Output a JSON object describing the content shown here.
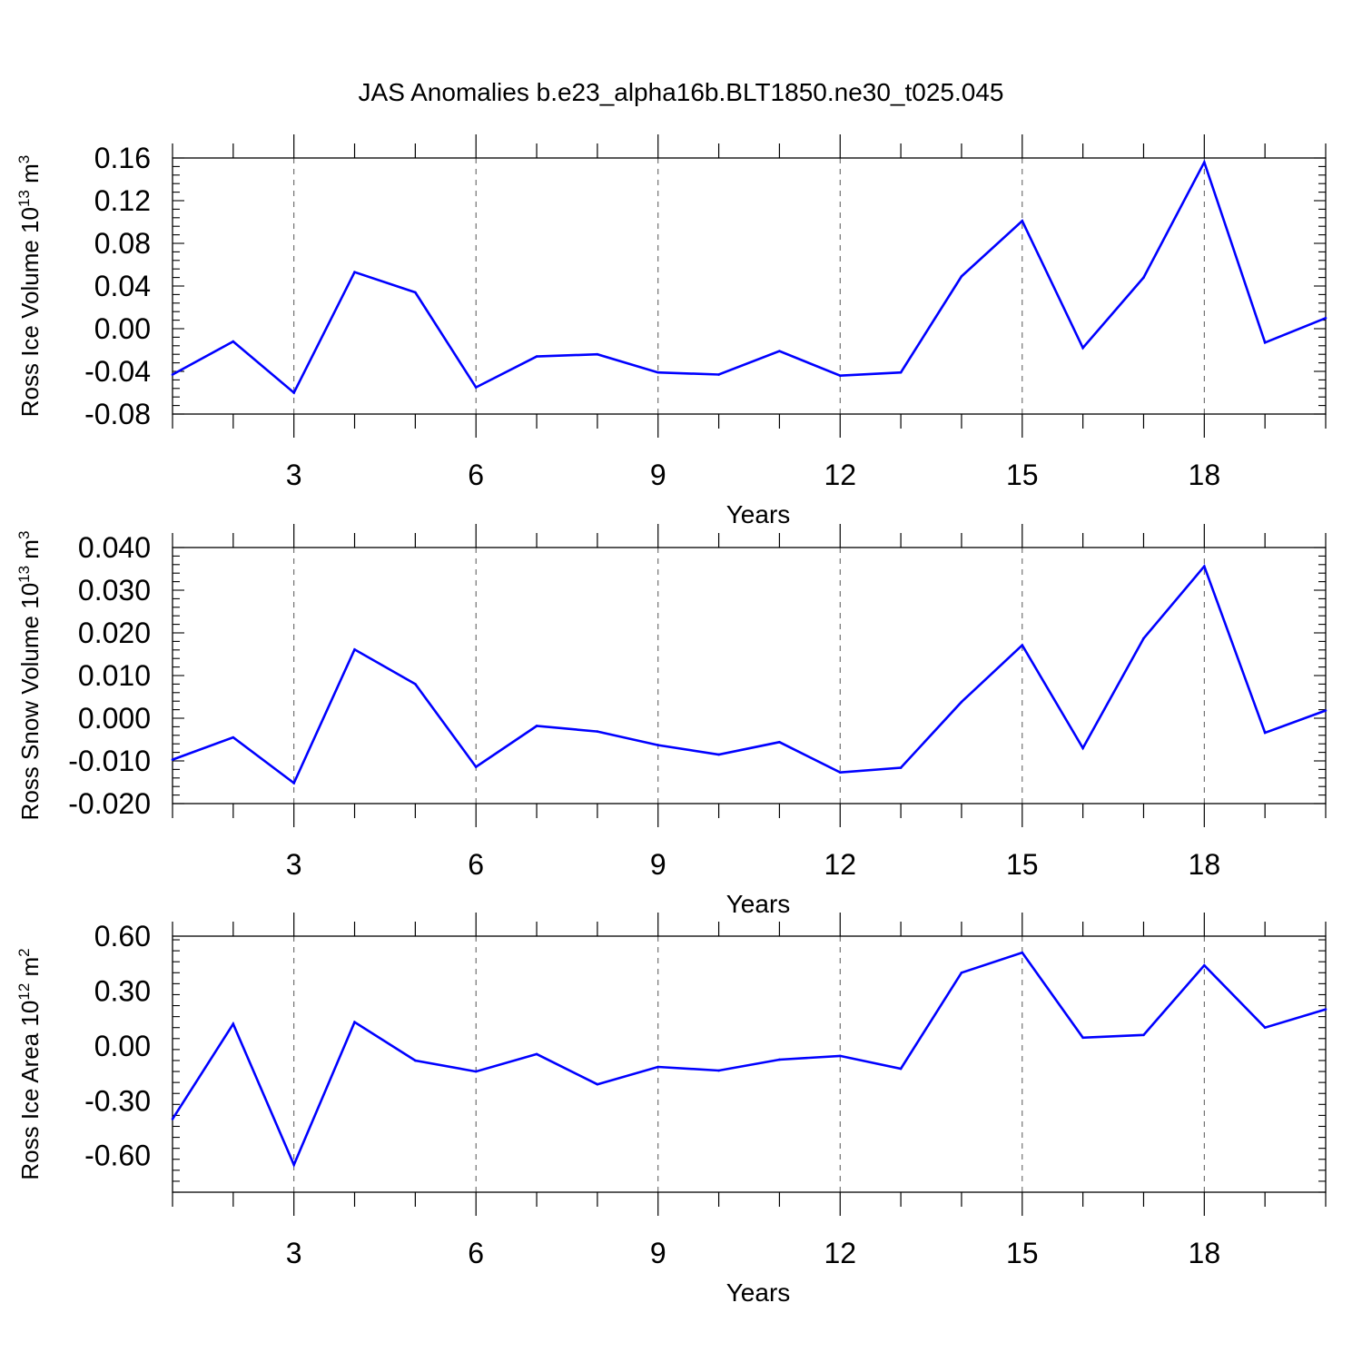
{
  "title": "JAS Anomalies b.e23_alpha16b.BLT1850.ne30_t025.045",
  "colors": {
    "line": "#0000ff",
    "axes": "#000000",
    "grid": "#000000"
  },
  "chart_data": [
    {
      "type": "line",
      "xlabel": "Years",
      "ylabel": {
        "text": "Ross Ice Volume 10",
        "exp": "13",
        "unit": " m",
        "unit_exp": "3"
      },
      "xlim": [
        1,
        20
      ],
      "ylim": [
        -0.08,
        0.16
      ],
      "xticks": [
        3,
        6,
        9,
        12,
        15,
        18
      ],
      "yticks": [
        -0.08,
        -0.04,
        0.0,
        0.04,
        0.08,
        0.12,
        0.16
      ],
      "ytick_labels": [
        "-0.08",
        "-0.04",
        "0.00",
        "0.04",
        "0.08",
        "0.12",
        "0.16"
      ],
      "grid": "vertical dashed at x ticks",
      "x": [
        1,
        2,
        3,
        4,
        5,
        6,
        7,
        8,
        9,
        10,
        11,
        12,
        13,
        14,
        15,
        16,
        17,
        18,
        19,
        20
      ],
      "y": [
        -0.043,
        -0.012,
        -0.06,
        0.053,
        0.034,
        -0.055,
        -0.026,
        -0.024,
        -0.041,
        -0.043,
        -0.021,
        -0.044,
        -0.041,
        0.049,
        0.101,
        -0.018,
        0.048,
        0.156,
        -0.013,
        0.01
      ]
    },
    {
      "type": "line",
      "xlabel": "Years",
      "ylabel": {
        "text": "Ross Snow Volume 10",
        "exp": "13",
        "unit": " m",
        "unit_exp": "3"
      },
      "xlim": [
        1,
        20
      ],
      "ylim": [
        -0.02,
        0.04
      ],
      "xticks": [
        3,
        6,
        9,
        12,
        15,
        18
      ],
      "yticks": [
        -0.02,
        -0.01,
        0.0,
        0.01,
        0.02,
        0.03,
        0.04
      ],
      "ytick_labels": [
        "-0.020",
        "-0.010",
        "0.000",
        "0.010",
        "0.020",
        "0.030",
        "0.040"
      ],
      "grid": "vertical dashed at x ticks",
      "x": [
        1,
        2,
        3,
        4,
        5,
        6,
        7,
        8,
        9,
        10,
        11,
        12,
        13,
        14,
        15,
        16,
        17,
        18,
        19,
        20
      ],
      "y": [
        -0.0097,
        -0.0045,
        -0.0152,
        0.0161,
        0.008,
        -0.0114,
        -0.0018,
        -0.0031,
        -0.0063,
        -0.0085,
        -0.0056,
        -0.0127,
        -0.0116,
        0.0038,
        0.0171,
        -0.007,
        0.0187,
        0.0356,
        -0.0034,
        0.0018
      ]
    },
    {
      "type": "line",
      "xlabel": "Years",
      "ylabel": {
        "text": "Ross Ice Area 10",
        "exp": "12",
        "unit": " m",
        "unit_exp": "2"
      },
      "xlim": [
        1,
        20
      ],
      "ylim": [
        -0.8,
        0.6
      ],
      "xticks": [
        3,
        6,
        9,
        12,
        15,
        18
      ],
      "yticks": [
        -0.6,
        -0.3,
        0.0,
        0.3,
        0.6
      ],
      "ytick_labels": [
        "-0.60",
        "-0.30",
        "0.00",
        "0.30",
        "0.60"
      ],
      "grid": "vertical dashed at x ticks",
      "x": [
        1,
        2,
        3,
        4,
        5,
        6,
        7,
        8,
        9,
        10,
        11,
        12,
        13,
        14,
        15,
        16,
        17,
        18,
        19,
        20
      ],
      "y": [
        -0.4,
        0.12,
        -0.65,
        0.13,
        -0.08,
        -0.14,
        -0.045,
        -0.21,
        -0.115,
        -0.135,
        -0.075,
        -0.055,
        -0.125,
        0.4,
        0.51,
        0.045,
        0.06,
        0.44,
        0.1,
        0.2
      ]
    }
  ]
}
